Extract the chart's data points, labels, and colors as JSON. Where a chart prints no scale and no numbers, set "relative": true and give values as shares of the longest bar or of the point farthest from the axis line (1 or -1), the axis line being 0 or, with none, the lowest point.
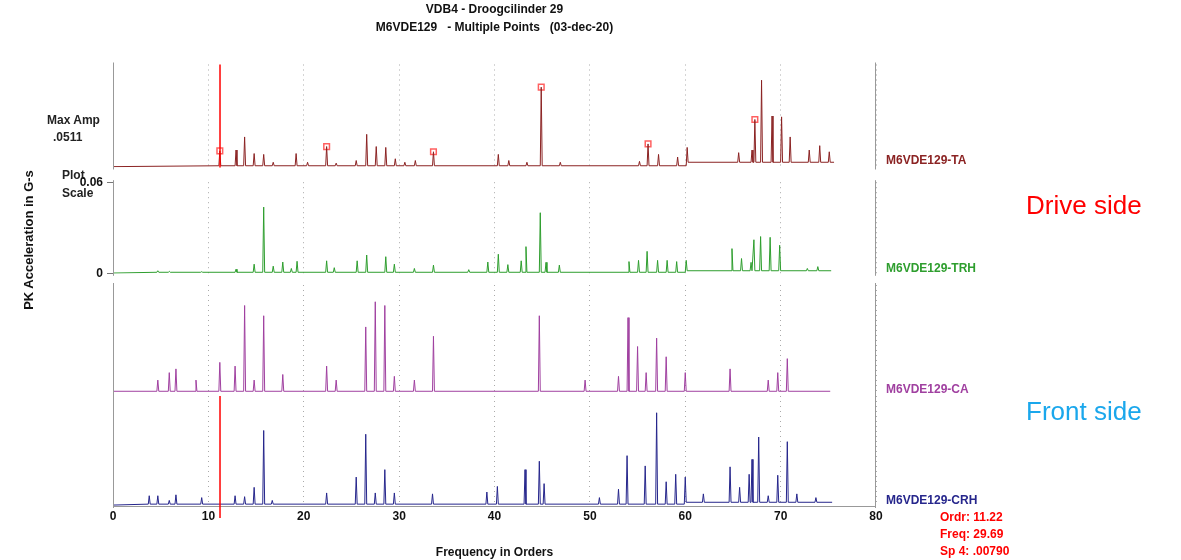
{
  "chart_data": [
    {
      "type": "line",
      "title": "VDB4 - Droogcilinder 29",
      "subtitle": "M6VDE129   - Multiple Points   (03-dec-20)",
      "annotations": [
        "Max Amp",
        ".0511",
        "Plot",
        "Scale"
      ],
      "xlim": [
        0,
        80
      ],
      "xticks": [
        0,
        10,
        20,
        30,
        40,
        50,
        60,
        70,
        80
      ],
      "relative": true,
      "grid": "x",
      "tick_labels": false,
      "legend": false,
      "ref_lines": [
        {
          "axis": "x",
          "value": 11.22,
          "color": "#ff0000"
        }
      ],
      "series": [
        {
          "name": "M6VDE129-TA",
          "color": "#8b2323",
          "x": [
            0,
            11.1,
            11.2,
            11.3,
            12.8,
            12.9,
            13.0,
            13.7,
            13.8,
            13.9,
            14.7,
            14.8,
            14.9,
            15.7,
            15.8,
            15.9,
            16.7,
            16.8,
            16.9,
            19.1,
            19.2,
            19.3,
            20.3,
            20.4,
            20.5,
            22.3,
            22.4,
            22.5,
            23.3,
            23.4,
            23.5,
            25.4,
            25.5,
            25.6,
            26.5,
            26.6,
            26.7,
            27.5,
            27.6,
            27.7,
            28.5,
            28.6,
            28.7,
            29.5,
            29.6,
            29.7,
            30.5,
            30.6,
            30.7,
            31.6,
            31.7,
            31.8,
            33.5,
            33.6,
            33.7,
            40.3,
            40.4,
            40.5,
            41.4,
            41.5,
            41.6,
            43.3,
            43.4,
            43.5,
            44.8,
            44.9,
            45.0,
            46.8,
            46.9,
            47.0,
            55.1,
            55.2,
            55.3,
            56.0,
            56.1,
            56.2,
            57.1,
            57.2,
            57.3,
            59.1,
            59.2,
            59.3,
            60.1,
            60.2,
            60.3,
            65.5,
            65.6,
            65.7,
            66.9,
            67.0,
            67.1,
            67.2,
            67.3,
            67.4,
            67.9,
            68.0,
            68.1,
            69.0,
            69.1,
            69.2,
            70.0,
            70.1,
            70.2,
            70.9,
            71.0,
            71.1,
            72.9,
            73.0,
            73.1,
            74.0,
            74.1,
            74.2,
            75.0,
            75.1,
            75.2,
            75.6
          ],
          "values": [
            0.01,
            0.02,
            0.19,
            0.02,
            0.02,
            0.2,
            0.02,
            0.02,
            0.35,
            0.02,
            0.02,
            0.16,
            0.02,
            0.02,
            0.15,
            0.02,
            0.02,
            0.06,
            0.02,
            0.02,
            0.16,
            0.02,
            0.02,
            0.06,
            0.02,
            0.02,
            0.24,
            0.02,
            0.02,
            0.05,
            0.02,
            0.02,
            0.08,
            0.02,
            0.02,
            0.38,
            0.02,
            0.02,
            0.24,
            0.02,
            0.02,
            0.23,
            0.02,
            0.02,
            0.1,
            0.02,
            0.02,
            0.06,
            0.02,
            0.02,
            0.08,
            0.02,
            0.02,
            0.18,
            0.02,
            0.02,
            0.15,
            0.02,
            0.02,
            0.08,
            0.02,
            0.02,
            0.06,
            0.02,
            0.02,
            0.92,
            0.02,
            0.02,
            0.06,
            0.02,
            0.02,
            0.07,
            0.02,
            0.02,
            0.27,
            0.02,
            0.02,
            0.15,
            0.02,
            0.02,
            0.12,
            0.02,
            0.02,
            0.23,
            0.06,
            0.06,
            0.17,
            0.06,
            0.06,
            0.2,
            0.06,
            0.06,
            0.55,
            0.06,
            0.06,
            1,
            0.06,
            0.06,
            0.59,
            0.06,
            0.06,
            0.58,
            0.06,
            0.06,
            0.35,
            0.06,
            0.06,
            0.2,
            0.06,
            0.06,
            0.25,
            0.06,
            0.06,
            0.18,
            0.06,
            0.06
          ]
        },
        {
          "type": "scatter",
          "marker": "square",
          "color": "#ff6060",
          "x": [
            11.2,
            22.4,
            33.6,
            44.9,
            56.1,
            67.3
          ],
          "values": [
            0.19,
            0.24,
            0.18,
            0.92,
            0.27,
            0.55
          ]
        }
      ]
    },
    {
      "type": "line",
      "ylabel": "PK Acceleration in G-s",
      "annotations": [
        "Drive side"
      ],
      "xlim": [
        0,
        80
      ],
      "xticks": [
        0,
        10,
        20,
        30,
        40,
        50,
        60,
        70,
        80
      ],
      "ylim": [
        0,
        0.06
      ],
      "yticks": [
        0,
        0.06
      ],
      "grid": "x",
      "tick_labels": "y",
      "legend": false,
      "series": [
        {
          "name": "M6VDE129-TRH",
          "color": "#2e9e2e",
          "x": [
            0,
            4.6,
            4.7,
            4.8,
            5.8,
            5.9,
            6.0,
            9.2,
            9.3,
            9.4,
            12.8,
            12.9,
            13.0,
            14.7,
            14.8,
            14.9,
            15.7,
            15.8,
            15.9,
            16.7,
            16.8,
            16.9,
            17.7,
            17.8,
            17.9,
            18.6,
            18.7,
            18.8,
            19.2,
            19.3,
            19.4,
            22.3,
            22.4,
            22.5,
            23.1,
            23.2,
            23.3,
            25.5,
            25.6,
            25.7,
            26.5,
            26.6,
            26.7,
            28.5,
            28.6,
            28.7,
            29.4,
            29.5,
            29.6,
            31.5,
            31.6,
            31.7,
            33.5,
            33.6,
            33.7,
            37.2,
            37.3,
            37.4,
            39.2,
            39.3,
            39.4,
            40.3,
            40.4,
            40.5,
            41.3,
            41.4,
            41.5,
            42.7,
            42.8,
            42.9,
            43.2,
            43.3,
            43.4,
            44.7,
            44.8,
            44.9,
            45.3,
            45.4,
            45.5,
            46.7,
            46.8,
            46.9,
            54.0,
            54.1,
            54.2,
            55.0,
            55.1,
            55.2,
            55.9,
            56.0,
            56.1,
            57.0,
            57.1,
            57.2,
            58.0,
            58.1,
            58.2,
            59.0,
            59.1,
            59.2,
            60.0,
            60.1,
            60.2,
            64.8,
            64.9,
            65.0,
            65.8,
            65.9,
            66.0,
            66.8,
            66.9,
            67.0,
            67.1,
            67.2,
            67.3,
            67.8,
            67.9,
            68.0,
            68.8,
            68.9,
            69.0,
            69.8,
            69.9,
            70.0,
            72.7,
            72.8,
            72.9,
            73.8,
            73.9,
            74.0,
            75.3
          ],
          "values": [
            0.0005,
            0.001,
            0.002,
            0.001,
            0.001,
            0.0016,
            0.001,
            0.001,
            0.0014,
            0.001,
            0.001,
            0.003,
            0.001,
            0.001,
            0.0063,
            0.001,
            0.001,
            0.0437,
            0.001,
            0.001,
            0.005,
            0.001,
            0.001,
            0.0077,
            0.001,
            0.001,
            0.0035,
            0.001,
            0.001,
            0.0082,
            0.001,
            0.001,
            0.0085,
            0.001,
            0.001,
            0.004,
            0.001,
            0.001,
            0.0085,
            0.001,
            0.001,
            0.0123,
            0.001,
            0.001,
            0.0112,
            0.001,
            0.001,
            0.0063,
            0.001,
            0.001,
            0.0035,
            0.001,
            0.001,
            0.0057,
            0.001,
            0.001,
            0.0027,
            0.001,
            0.001,
            0.0077,
            0.001,
            0.001,
            0.0128,
            0.001,
            0.001,
            0.006,
            0.001,
            0.001,
            0.0085,
            0.001,
            0.001,
            0.0178,
            0.001,
            0.001,
            0.04,
            0.001,
            0.001,
            0.0075,
            0.001,
            0.001,
            0.0057,
            0.001,
            0.001,
            0.008,
            0.001,
            0.001,
            0.0088,
            0.001,
            0.001,
            0.0147,
            0.001,
            0.001,
            0.0088,
            0.001,
            0.001,
            0.0088,
            0.001,
            0.001,
            0.008,
            0.001,
            0.001,
            0.0088,
            0.002,
            0.002,
            0.0165,
            0.002,
            0.002,
            0.01,
            0.002,
            0.002,
            0.0075,
            0.002,
            0.002,
            0.0223,
            0.002,
            0.002,
            0.0244,
            0.002,
            0.002,
            0.0239,
            0.002,
            0.002,
            0.0187,
            0.002,
            0.002,
            0.0035,
            0.002,
            0.002,
            0.0047,
            0.002,
            0.002
          ]
        }
      ]
    },
    {
      "type": "line",
      "annotations": [
        "Front side"
      ],
      "xlim": [
        0,
        80
      ],
      "xticks": [
        0,
        10,
        20,
        30,
        40,
        50,
        60,
        70,
        80
      ],
      "relative": true,
      "grid": "x",
      "tick_labels": false,
      "legend": false,
      "series": [
        {
          "name": "M6VDE129-CA",
          "color": "#a040a0",
          "x": [
            0,
            4.6,
            4.7,
            4.8,
            5.8,
            5.9,
            6.0,
            6.5,
            6.6,
            6.7,
            8.6,
            8.7,
            8.8,
            11.1,
            11.2,
            11.3,
            12.7,
            12.8,
            12.9,
            13.7,
            13.8,
            13.9,
            14.7,
            14.8,
            14.9,
            15.7,
            15.8,
            15.9,
            17.7,
            17.8,
            17.9,
            22.3,
            22.4,
            22.5,
            23.3,
            23.4,
            23.5,
            26.4,
            26.5,
            26.6,
            27.4,
            27.5,
            27.6,
            28.4,
            28.5,
            28.6,
            29.4,
            29.5,
            29.6,
            31.5,
            31.6,
            31.7,
            33.5,
            33.6,
            33.7,
            44.6,
            44.7,
            44.8,
            49.4,
            49.5,
            49.6,
            52.9,
            53.0,
            53.1,
            53.9,
            54.0,
            54.1,
            54.9,
            55.0,
            55.1,
            55.8,
            55.9,
            56.0,
            56.9,
            57.0,
            57.1,
            57.9,
            58.0,
            58.1,
            59.9,
            60.0,
            60.1,
            64.6,
            64.7,
            64.8,
            68.6,
            68.7,
            68.8,
            69.6,
            69.7,
            69.8,
            70.6,
            70.7,
            70.8,
            75.2
          ],
          "values": [
            0.04,
            0.04,
            0.16,
            0.04,
            0.04,
            0.24,
            0.04,
            0.04,
            0.28,
            0.04,
            0.04,
            0.16,
            0.04,
            0.04,
            0.35,
            0.04,
            0.04,
            0.31,
            0.04,
            0.04,
            0.96,
            0.04,
            0.04,
            0.16,
            0.04,
            0.04,
            0.85,
            0.04,
            0.04,
            0.22,
            0.04,
            0.04,
            0.31,
            0.04,
            0.04,
            0.16,
            0.04,
            0.04,
            0.73,
            0.04,
            0.04,
            1,
            0.04,
            0.04,
            0.96,
            0.04,
            0.04,
            0.2,
            0.04,
            0.04,
            0.16,
            0.04,
            0.04,
            0.63,
            0.04,
            0.04,
            0.85,
            0.04,
            0.04,
            0.16,
            0.04,
            0.04,
            0.2,
            0.04,
            0.04,
            0.83,
            0.04,
            0.04,
            0.52,
            0.04,
            0.04,
            0.24,
            0.04,
            0.04,
            0.61,
            0.04,
            0.04,
            0.41,
            0.04,
            0.04,
            0.24,
            0.04,
            0.04,
            0.28,
            0.04,
            0.04,
            0.16,
            0.04,
            0.04,
            0.24,
            0.04,
            0.04,
            0.39,
            0.04,
            0.04
          ]
        }
      ]
    },
    {
      "type": "line",
      "xlabel": "Frequency in Orders",
      "annotations": [
        "Ordr: 11.22",
        "Freq: 29.69",
        "Sp 4: .00790"
      ],
      "xlim": [
        0,
        80
      ],
      "xticks": [
        0,
        10,
        20,
        30,
        40,
        50,
        60,
        70,
        80
      ],
      "relative": true,
      "grid": "x",
      "tick_labels": "x",
      "legend": false,
      "ref_lines": [
        {
          "axis": "x",
          "value": 11.22,
          "color": "#ff0000"
        }
      ],
      "series": [
        {
          "name": "M6VDE129-CRH",
          "color": "#26268c",
          "x": [
            0,
            3.7,
            3.8,
            3.9,
            4.6,
            4.7,
            4.8,
            5.8,
            5.9,
            6.0,
            6.5,
            6.6,
            6.7,
            9.2,
            9.3,
            9.4,
            12.7,
            12.8,
            12.9,
            13.7,
            13.8,
            13.9,
            14.7,
            14.8,
            14.9,
            15.7,
            15.8,
            15.9,
            16.6,
            16.7,
            16.8,
            22.3,
            22.4,
            22.5,
            25.4,
            25.5,
            25.6,
            26.4,
            26.5,
            26.6,
            27.4,
            27.5,
            27.6,
            28.4,
            28.5,
            28.6,
            29.4,
            29.5,
            29.6,
            33.4,
            33.5,
            33.6,
            39.1,
            39.2,
            39.3,
            40.2,
            40.3,
            40.4,
            43.1,
            43.2,
            43.3,
            44.6,
            44.7,
            44.8,
            45.1,
            45.2,
            45.3,
            50.9,
            51.0,
            51.1,
            52.9,
            53.0,
            53.1,
            53.8,
            53.9,
            54.0,
            55.7,
            55.8,
            55.9,
            56.9,
            57.0,
            57.1,
            57.9,
            58.0,
            58.1,
            58.9,
            59.0,
            59.1,
            59.9,
            60.0,
            60.1,
            61.8,
            61.9,
            62.0,
            64.6,
            64.7,
            64.8,
            65.6,
            65.7,
            65.8,
            66.6,
            66.7,
            66.8,
            66.9,
            67.0,
            67.1,
            67.6,
            67.7,
            67.8,
            68.6,
            68.7,
            68.8,
            69.6,
            69.7,
            69.8,
            70.6,
            70.7,
            70.8,
            71.6,
            71.7,
            71.8,
            73.6,
            73.7,
            73.8,
            75.4
          ],
          "values": [
            0.01,
            0.02,
            0.11,
            0.02,
            0.02,
            0.11,
            0.02,
            0.02,
            0.06,
            0.02,
            0.02,
            0.12,
            0.02,
            0.02,
            0.09,
            0.02,
            0.02,
            0.11,
            0.02,
            0.02,
            0.1,
            0.02,
            0.02,
            0.2,
            0.02,
            0.02,
            0.81,
            0.02,
            0.02,
            0.06,
            0.02,
            0.02,
            0.14,
            0.02,
            0.02,
            0.31,
            0.02,
            0.02,
            0.77,
            0.02,
            0.02,
            0.14,
            0.02,
            0.02,
            0.39,
            0.02,
            0.02,
            0.14,
            0.02,
            0.02,
            0.13,
            0.02,
            0.02,
            0.15,
            0.02,
            0.02,
            0.21,
            0.02,
            0.02,
            0.39,
            0.02,
            0.02,
            0.48,
            0.02,
            0.02,
            0.24,
            0.02,
            0.02,
            0.09,
            0.02,
            0.02,
            0.18,
            0.02,
            0.02,
            0.54,
            0.02,
            0.02,
            0.43,
            0.02,
            0.02,
            1,
            0.02,
            0.02,
            0.26,
            0.02,
            0.02,
            0.34,
            0.02,
            0.02,
            0.31,
            0.04,
            0.04,
            0.13,
            0.04,
            0.04,
            0.42,
            0.04,
            0.04,
            0.2,
            0.04,
            0.04,
            0.34,
            0.04,
            0.04,
            0.5,
            0.04,
            0.04,
            0.74,
            0.04,
            0.04,
            0.11,
            0.04,
            0.04,
            0.33,
            0.04,
            0.04,
            0.69,
            0.04,
            0.04,
            0.13,
            0.04,
            0.04,
            0.09,
            0.04,
            0.04
          ]
        }
      ]
    }
  ]
}
